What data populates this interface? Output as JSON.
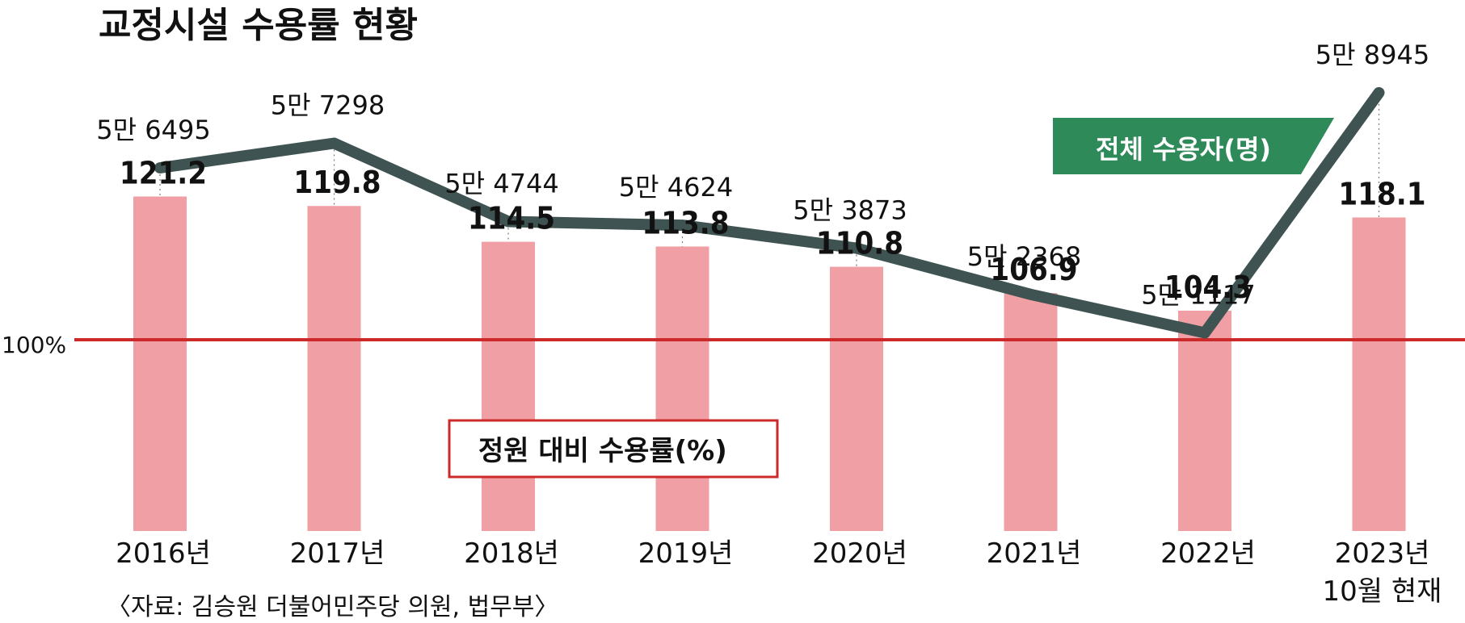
{
  "chart_data": {
    "type": "bar",
    "title": "교정시설 수용률 현황",
    "categories": [
      "2016년",
      "2017년",
      "2018년",
      "2019년",
      "2020년",
      "2021년",
      "2022년",
      "2023년"
    ],
    "category_sublabels": [
      "",
      "",
      "",
      "",
      "",
      "",
      "",
      "10월 현재"
    ],
    "series": [
      {
        "name": "정원 대비 수용률(%)",
        "type": "bar",
        "values": [
          121.2,
          119.8,
          114.5,
          113.8,
          110.8,
          106.9,
          104.3,
          118.1
        ],
        "labels": [
          "121.2",
          "119.8",
          "114.5",
          "113.8",
          "110.8",
          "106.9",
          "104.3",
          "118.1"
        ],
        "color": "#f0a0a4"
      },
      {
        "name": "전체 수용자(명)",
        "type": "line",
        "values": [
          56495,
          57298,
          54744,
          54624,
          53873,
          52368,
          51117,
          58945
        ],
        "labels": [
          "5만 6495",
          "5만 7298",
          "5만 4744",
          "5만 4624",
          "5만 3873",
          "5만 2368",
          "5만 1117",
          "5만 8945"
        ],
        "color": "#3f5452"
      }
    ],
    "reference_line": {
      "value": 100,
      "label": "100%",
      "color": "#cc2a2a"
    },
    "legend": {
      "line_label": "전체 수용자(명)",
      "bar_label": "정원 대비 수용률(%)",
      "line_legend_color": "#2f8a5a"
    },
    "source": "〈자료: 김승원 더불어민주당 의원, 법무부〉",
    "xlabel": "",
    "ylabel": ""
  }
}
